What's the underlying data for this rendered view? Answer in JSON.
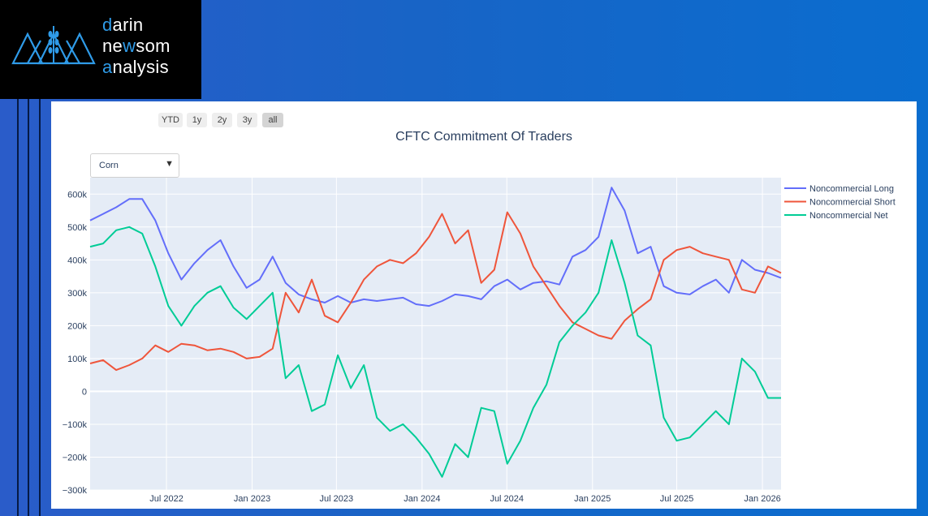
{
  "brand": {
    "logo_line1_accent": "d",
    "logo_line1_rest": "arin",
    "logo_line2_a": "ne",
    "logo_line2_accent": "w",
    "logo_line2_b": "som",
    "logo_line3_accent": "a",
    "logo_line3_rest": "nalysis",
    "accent_color": "#2f9be8",
    "logo_icon": "wheat-triangles-logo-icon"
  },
  "controls": {
    "range_buttons": [
      "YTD",
      "1y",
      "2y",
      "3y",
      "all"
    ],
    "active_range": "all",
    "dropdown_value": "Corn",
    "dropdown_icon": "triangle-down-icon"
  },
  "chart_data": {
    "type": "line",
    "title": "CFTC Commitment Of Traders",
    "xlabel": "",
    "ylabel": "",
    "x_ticks": [
      "Jul 2022",
      "Jan 2023",
      "Jul 2023",
      "Jan 2024",
      "Jul 2024",
      "Jan 2025",
      "Jul 2025",
      "Jan 2026"
    ],
    "y_ticks": [
      "600k",
      "500k",
      "400k",
      "300k",
      "200k",
      "100k",
      "0",
      "−100k",
      "−200k",
      "−300k"
    ],
    "y_tick_values": [
      600000,
      500000,
      400000,
      300000,
      200000,
      100000,
      0,
      -100000,
      -200000,
      -300000
    ],
    "ylim": [
      -300000,
      650000
    ],
    "xlim": [
      "2022-01-18",
      "2026-02-10"
    ],
    "grid": true,
    "legend_position": "right",
    "background": "#e5ecf6",
    "x": [
      "2022-01-18",
      "2022-02-15",
      "2022-03-15",
      "2022-04-12",
      "2022-05-10",
      "2022-06-07",
      "2022-07-05",
      "2022-08-02",
      "2022-08-30",
      "2022-09-27",
      "2022-10-25",
      "2022-11-22",
      "2022-12-20",
      "2023-01-17",
      "2023-02-14",
      "2023-03-14",
      "2023-04-11",
      "2023-05-09",
      "2023-06-06",
      "2023-07-04",
      "2023-08-01",
      "2023-08-29",
      "2023-09-26",
      "2023-10-24",
      "2023-11-21",
      "2023-12-19",
      "2024-01-16",
      "2024-02-13",
      "2024-03-12",
      "2024-04-09",
      "2024-05-07",
      "2024-06-04",
      "2024-07-02",
      "2024-07-30",
      "2024-08-27",
      "2024-09-24",
      "2024-10-22",
      "2024-11-19",
      "2024-12-17",
      "2025-01-14",
      "2025-02-11",
      "2025-03-11",
      "2025-04-08",
      "2025-05-06",
      "2025-06-03",
      "2025-07-01",
      "2025-07-29",
      "2025-08-26",
      "2025-09-23",
      "2025-10-21",
      "2025-11-18",
      "2025-12-16",
      "2026-01-13",
      "2026-02-10"
    ],
    "series": [
      {
        "name": "Noncommercial Long",
        "color": "#636efa",
        "values": [
          520000,
          540000,
          560000,
          585000,
          585000,
          520000,
          420000,
          340000,
          390000,
          430000,
          460000,
          380000,
          315000,
          340000,
          410000,
          330000,
          295000,
          280000,
          270000,
          290000,
          270000,
          280000,
          275000,
          280000,
          285000,
          265000,
          260000,
          275000,
          295000,
          290000,
          280000,
          320000,
          340000,
          310000,
          330000,
          335000,
          325000,
          410000,
          430000,
          470000,
          620000,
          550000,
          420000,
          440000,
          320000,
          300000,
          295000,
          320000,
          340000,
          300000,
          400000,
          370000,
          360000,
          345000
        ]
      },
      {
        "name": "Noncommercial Short",
        "color": "#ef553b",
        "values": [
          85000,
          95000,
          65000,
          80000,
          100000,
          140000,
          120000,
          145000,
          140000,
          125000,
          130000,
          120000,
          100000,
          105000,
          130000,
          300000,
          240000,
          340000,
          230000,
          210000,
          270000,
          340000,
          380000,
          400000,
          390000,
          420000,
          470000,
          540000,
          450000,
          490000,
          330000,
          370000,
          545000,
          480000,
          380000,
          320000,
          260000,
          210000,
          190000,
          170000,
          160000,
          215000,
          250000,
          280000,
          400000,
          430000,
          440000,
          420000,
          410000,
          400000,
          310000,
          300000,
          380000,
          360000
        ]
      },
      {
        "name": "Noncommercial Net",
        "color": "#00cc96",
        "values": [
          440000,
          450000,
          490000,
          500000,
          480000,
          380000,
          260000,
          200000,
          260000,
          300000,
          320000,
          255000,
          220000,
          260000,
          300000,
          40000,
          80000,
          -60000,
          -40000,
          110000,
          10000,
          80000,
          -80000,
          -120000,
          -100000,
          -140000,
          -190000,
          -260000,
          -160000,
          -200000,
          -50000,
          -60000,
          -220000,
          -150000,
          -50000,
          20000,
          150000,
          200000,
          240000,
          300000,
          460000,
          330000,
          170000,
          140000,
          -80000,
          -150000,
          -140000,
          -100000,
          -60000,
          -100000,
          100000,
          60000,
          -20000,
          -20000
        ]
      }
    ]
  }
}
